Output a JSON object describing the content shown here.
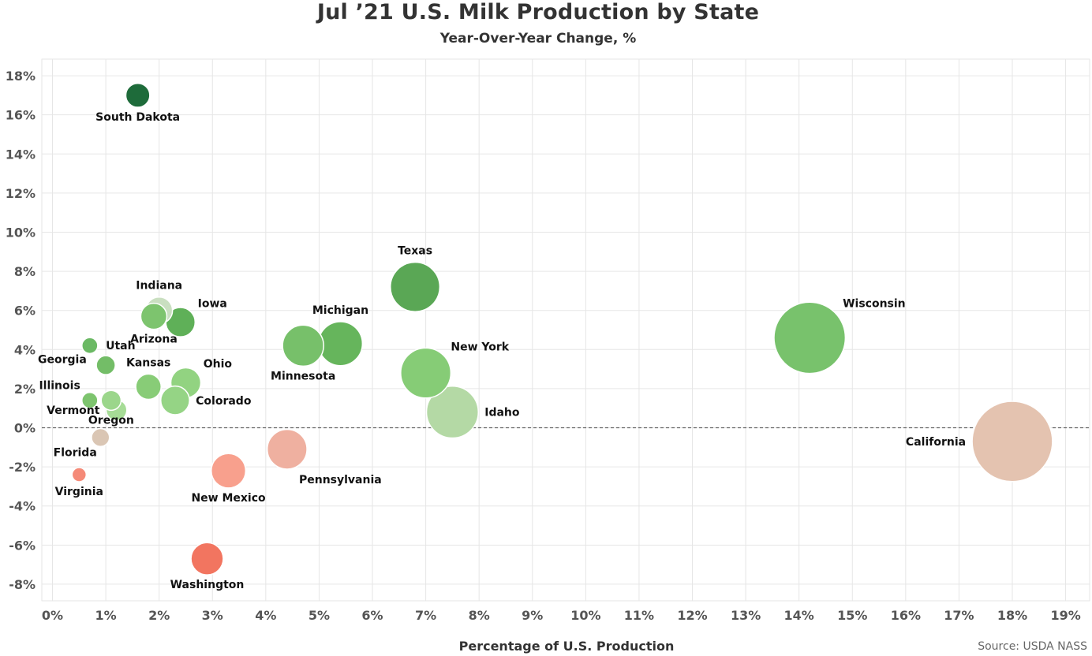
{
  "header": {
    "title": "Jul ’21 U.S. Milk Production by State",
    "subtitle": "Year-Over-Year Change, %"
  },
  "source": "Source: USDA NASS",
  "chart_data": {
    "type": "scatter",
    "title": "Jul ’21 U.S. Milk Production by State",
    "subtitle": "Year-Over-Year Change, %",
    "xlabel": "Percentage of U.S. Production",
    "ylabel": "",
    "xlim": [
      -0.2,
      19.45
    ],
    "ylim": [
      -8.85,
      18.85
    ],
    "x_ticks": [
      0,
      1,
      2,
      3,
      4,
      5,
      6,
      7,
      8,
      9,
      10,
      11,
      12,
      13,
      14,
      15,
      16,
      17,
      18,
      19
    ],
    "y_ticks": [
      -8,
      -6,
      -4,
      -2,
      0,
      2,
      4,
      6,
      8,
      10,
      12,
      14,
      16,
      18
    ],
    "x_tick_labels": [
      "0%",
      "1%",
      "2%",
      "3%",
      "4%",
      "5%",
      "6%",
      "7%",
      "8%",
      "9%",
      "10%",
      "11%",
      "12%",
      "13%",
      "14%",
      "15%",
      "16%",
      "17%",
      "18%",
      "19%"
    ],
    "y_tick_labels": [
      "-8%",
      "-6%",
      "-4%",
      "-2%",
      "0%",
      "2%",
      "4%",
      "6%",
      "8%",
      "10%",
      "12%",
      "14%",
      "16%",
      "18%"
    ],
    "grid": true,
    "zero_line": "dashed",
    "size_encodes": "x",
    "points": [
      {
        "name": "South Dakota",
        "x": 1.6,
        "y": 17.0,
        "color": "#1e6b3a",
        "label_pos": "below"
      },
      {
        "name": "Texas",
        "x": 6.8,
        "y": 7.2,
        "color": "#5aa755",
        "label_pos": "above"
      },
      {
        "name": "Wisconsin",
        "x": 14.2,
        "y": 4.6,
        "color": "#78c26c",
        "label_pos": "upper-right"
      },
      {
        "name": "Michigan",
        "x": 5.4,
        "y": 4.3,
        "color": "#66b55c",
        "label_pos": "above"
      },
      {
        "name": "Minnesota",
        "x": 4.7,
        "y": 4.2,
        "color": "#77c06a",
        "label_pos": "below"
      },
      {
        "name": "New York",
        "x": 7.0,
        "y": 2.8,
        "color": "#86cc76",
        "label_pos": "upper-right"
      },
      {
        "name": "Idaho",
        "x": 7.5,
        "y": 0.8,
        "color": "#b4d9a5",
        "label_pos": "right"
      },
      {
        "name": "Iowa",
        "x": 2.4,
        "y": 5.4,
        "color": "#5fb058",
        "label_pos": "upper-right"
      },
      {
        "name": "Arizona",
        "x": 1.9,
        "y": 5.7,
        "color": "#7dc46e",
        "label_pos": "below"
      },
      {
        "name": "Indiana",
        "x": 2.0,
        "y": 6.0,
        "color": "#c9dfc0",
        "label_pos": "above"
      },
      {
        "name": "Georgia",
        "x": 0.7,
        "y": 4.2,
        "color": "#6bb964",
        "label_pos": "lower-left"
      },
      {
        "name": "Utah",
        "x": 1.0,
        "y": 3.2,
        "color": "#73bd67",
        "label_pos": "above-right"
      },
      {
        "name": "Ohio",
        "x": 2.5,
        "y": 2.3,
        "color": "#92d381",
        "label_pos": "upper-right"
      },
      {
        "name": "Kansas",
        "x": 1.8,
        "y": 2.1,
        "color": "#88cc77",
        "label_pos": "above"
      },
      {
        "name": "Colorado",
        "x": 2.3,
        "y": 1.4,
        "color": "#95d485",
        "label_pos": "right"
      },
      {
        "name": "Illinois",
        "x": 0.7,
        "y": 1.4,
        "color": "#7dc46e",
        "label_pos": "upper-left"
      },
      {
        "name": "Oregon",
        "x": 1.1,
        "y": 1.4,
        "color": "#9bd68b",
        "label_pos": "below"
      },
      {
        "name": "Vermont",
        "x": 1.2,
        "y": 0.9,
        "color": "#a6dc96",
        "label_pos": "left"
      },
      {
        "name": "Florida",
        "x": 0.9,
        "y": -0.5,
        "color": "#dac6b4",
        "label_pos": "lower-left"
      },
      {
        "name": "Virginia",
        "x": 0.5,
        "y": -2.4,
        "color": "#f58a78",
        "label_pos": "below"
      },
      {
        "name": "Pennsylvania",
        "x": 4.4,
        "y": -1.1,
        "color": "#efb0a0",
        "label_pos": "lower-right"
      },
      {
        "name": "New Mexico",
        "x": 3.3,
        "y": -2.2,
        "color": "#f8a08d",
        "label_pos": "below"
      },
      {
        "name": "Washington",
        "x": 2.9,
        "y": -6.7,
        "color": "#f27560",
        "label_pos": "below"
      },
      {
        "name": "California",
        "x": 18.0,
        "y": -0.7,
        "color": "#e4c3b0",
        "label_pos": "left"
      }
    ]
  }
}
